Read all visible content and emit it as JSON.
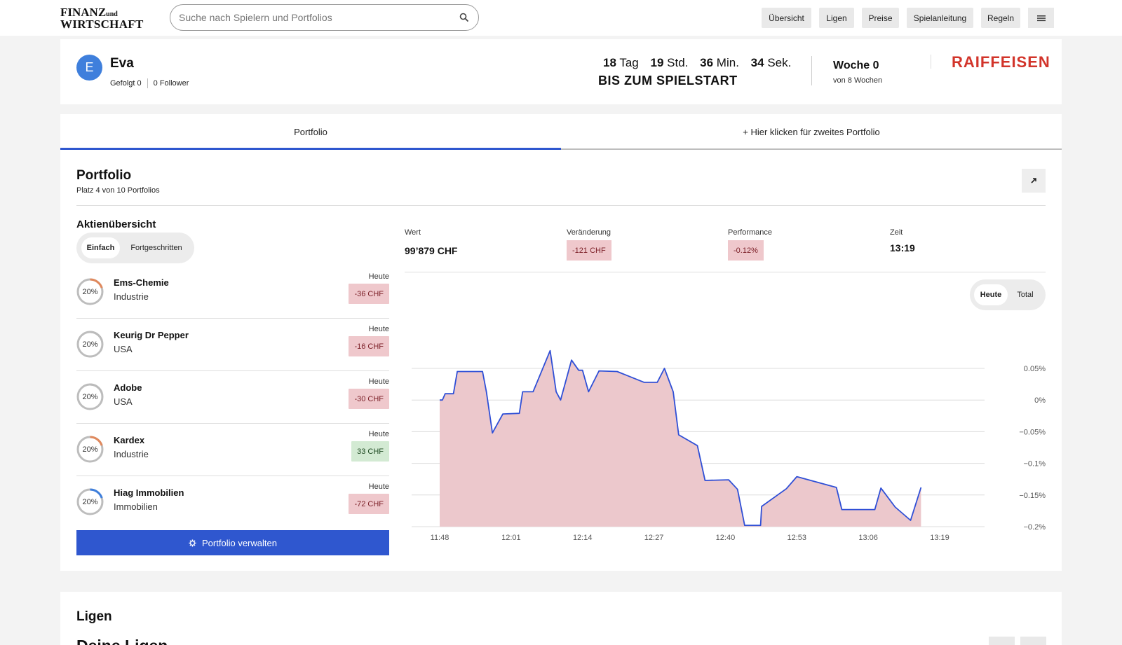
{
  "header": {
    "logo_line1": "FINANZ",
    "logo_und": "und",
    "logo_line2": "WIRTSCHAFT",
    "search_placeholder": "Suche nach Spielern und Portfolios",
    "nav": [
      "Übersicht",
      "Ligen",
      "Preise",
      "Spielanleitung",
      "Regeln"
    ]
  },
  "profile": {
    "avatar_letter": "E",
    "name": "Eva",
    "following": "Gefolgt 0",
    "followers": "0 Follower",
    "countdown": {
      "days": "18",
      "days_unit": "Tag",
      "hours": "19",
      "hours_unit": "Std.",
      "minutes": "36",
      "minutes_unit": "Min.",
      "seconds": "34",
      "seconds_unit": "Sek.",
      "subtitle": "BIS ZUM SPIELSTART"
    },
    "week": "Woche 0",
    "week_sub": "von 8 Wochen",
    "sponsor": "RAIFFEISEN"
  },
  "tabs": {
    "active": "Portfolio",
    "second": "+ Hier klicken für zweites Portfolio"
  },
  "portfolio": {
    "title": "Portfolio",
    "rank": "Platz 4 von 10 Portfolios",
    "overview_title": "Aktienübersicht",
    "view_options": [
      "Einfach",
      "Fortgeschritten"
    ],
    "stocks": [
      {
        "name": "Ems-Chemie",
        "sector": "Industrie",
        "weight": "20%",
        "weight_value": 0.2,
        "ring_color": "#e0895d",
        "period": "Heute",
        "change": "-36 CHF",
        "trend": "neg"
      },
      {
        "name": "Keurig Dr Pepper",
        "sector": "USA",
        "weight": "20%",
        "weight_value": 0.2,
        "ring_color": "#bbbbbb",
        "period": "Heute",
        "change": "-16 CHF",
        "trend": "neg"
      },
      {
        "name": "Adobe",
        "sector": "USA",
        "weight": "20%",
        "weight_value": 0.2,
        "ring_color": "#bbbbbb",
        "period": "Heute",
        "change": "-30 CHF",
        "trend": "neg"
      },
      {
        "name": "Kardex",
        "sector": "Industrie",
        "weight": "20%",
        "weight_value": 0.2,
        "ring_color": "#e0895d",
        "period": "Heute",
        "change": "33 CHF",
        "trend": "pos"
      },
      {
        "name": "Hiag Immobilien",
        "sector": "Immobilien",
        "weight": "20%",
        "weight_value": 0.2,
        "ring_color": "#3f7fdc",
        "period": "Heute",
        "change": "-72 CHF",
        "trend": "neg"
      }
    ],
    "manage_label": "Portfolio verwalten",
    "stats": {
      "wert_label": "Wert",
      "wert": "99’879 CHF",
      "change_label": "Veränderung",
      "change": "-121 CHF",
      "perf_label": "Performance",
      "perf": "-0.12%",
      "time_label": "Zeit",
      "time": "13:19"
    },
    "chart_toggle": [
      "Heute",
      "Total"
    ]
  },
  "colors": {
    "accent": "#2f57cf",
    "negative_bg": "#efc8cc",
    "positive_bg": "#d3ead3",
    "chart_line": "#2f4fd6",
    "chart_fill": "#ecc8cc",
    "sponsor_red": "#d2342a"
  },
  "chart_data": {
    "type": "area",
    "x_ticks": [
      "11:48",
      "12:01",
      "12:14",
      "12:27",
      "12:40",
      "12:53",
      "13:06",
      "13:19"
    ],
    "y_ticks": [
      "0.05%",
      "0%",
      "−0.05%",
      "−0.1%",
      "−0.15%",
      "−0.2%"
    ],
    "y_tick_values": [
      0.05,
      0,
      -0.05,
      -0.1,
      -0.15,
      -0.2
    ],
    "ylim": [
      -0.2,
      0.05
    ],
    "xlim_minutes": [
      0,
      91
    ],
    "series": [
      {
        "values": [
          [
            0,
            0
          ],
          [
            0.5,
            0
          ],
          [
            1.0,
            0.01
          ],
          [
            2.5,
            0.01
          ],
          [
            3.2,
            0.045
          ],
          [
            7.8,
            0.045
          ],
          [
            8.5,
            0.013
          ],
          [
            9.6,
            -0.052
          ],
          [
            11.5,
            -0.022
          ],
          [
            14.5,
            -0.021
          ],
          [
            15.1,
            0.013
          ],
          [
            17.0,
            0.013
          ],
          [
            20.1,
            0.078
          ],
          [
            21.2,
            0.013
          ],
          [
            22.0,
            0.0
          ],
          [
            24.0,
            0.063
          ],
          [
            25.3,
            0.047
          ],
          [
            26.0,
            0.047
          ],
          [
            27.1,
            0.013
          ],
          [
            29.0,
            0.046
          ],
          [
            32.3,
            0.045
          ],
          [
            37.2,
            0.028
          ],
          [
            39.6,
            0.028
          ],
          [
            40.9,
            0.05
          ],
          [
            42.5,
            0.013
          ],
          [
            43.5,
            -0.055
          ],
          [
            46.9,
            -0.072
          ],
          [
            48.3,
            -0.127
          ],
          [
            52.6,
            -0.126
          ],
          [
            54.2,
            -0.141
          ],
          [
            55.5,
            -0.198
          ],
          [
            58.4,
            -0.198
          ],
          [
            58.6,
            -0.168
          ],
          [
            63.1,
            -0.14
          ],
          [
            65.0,
            -0.121
          ],
          [
            72.2,
            -0.138
          ],
          [
            73.2,
            -0.173
          ],
          [
            79.2,
            -0.173
          ],
          [
            80.3,
            -0.139
          ],
          [
            82.9,
            -0.169
          ],
          [
            85.7,
            -0.19
          ],
          [
            87.6,
            -0.138
          ]
        ]
      }
    ]
  },
  "ligen": {
    "title": "Ligen",
    "subtitle": "Deine Ligen"
  }
}
